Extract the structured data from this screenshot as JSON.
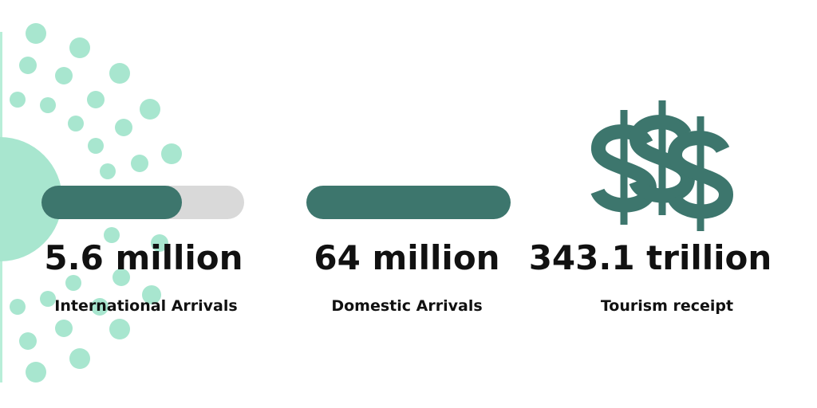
{
  "stats": [
    {
      "value": "5.6 million",
      "label": "International Arrivals"
    },
    {
      "value": "64 million",
      "label": "Domestic Arrivals"
    },
    {
      "value": "343.1 trillion",
      "label": "Tourism receipt"
    }
  ]
}
